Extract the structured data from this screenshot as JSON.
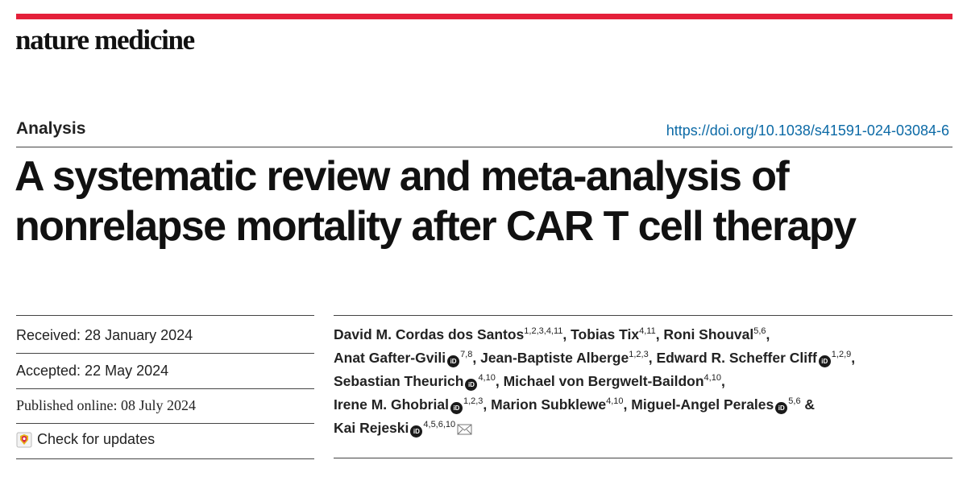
{
  "journal": {
    "name": "nature medicine"
  },
  "article": {
    "section": "Analysis",
    "doi": "https://doi.org/10.1038/s41591-024-03084-6",
    "title_line1": "A systematic review and meta-analysis of",
    "title_line2": "nonrelapse mortality after CAR T cell therapy"
  },
  "dates": {
    "received": "Received: 28 January 2024",
    "accepted": "Accepted: 22 May 2024",
    "published": "Published online: 08 July 2024",
    "check_updates": "Check for updates"
  },
  "authors": [
    {
      "name": "David M. Cordas dos Santos",
      "aff": "1,2,3,4,11",
      "orcid": false,
      "sep": ", "
    },
    {
      "name": "Tobias Tix",
      "aff": "4,11",
      "orcid": false,
      "sep": ", "
    },
    {
      "name": "Roni Shouval",
      "aff": "5,6",
      "orcid": false,
      "sep": ","
    },
    {
      "name": "Anat Gafter-Gvili",
      "aff": "7,8",
      "orcid": true,
      "sep": ", "
    },
    {
      "name": "Jean-Baptiste Alberge",
      "aff": "1,2,3",
      "orcid": false,
      "sep": ", "
    },
    {
      "name": "Edward R. Scheffer Cliff",
      "aff": "1,2,9",
      "orcid": true,
      "sep": ","
    },
    {
      "name": "Sebastian Theurich",
      "aff": "4,10",
      "orcid": true,
      "sep": ", "
    },
    {
      "name": "Michael von Bergwelt-Baildon",
      "aff": "4,10",
      "orcid": false,
      "sep": ","
    },
    {
      "name": "Irene M. Ghobrial",
      "aff": "1,2,3",
      "orcid": true,
      "sep": ", "
    },
    {
      "name": "Marion Subklewe",
      "aff": "4,10",
      "orcid": false,
      "sep": ", "
    },
    {
      "name": "Miguel-Angel Perales",
      "aff": "5,6",
      "orcid": true,
      "sep": " &"
    },
    {
      "name": "Kai Rejeski",
      "aff": "4,5,6,10",
      "orcid": true,
      "sep": "",
      "corresponding": true
    }
  ],
  "author_lines": [
    [
      0,
      1,
      2
    ],
    [
      3,
      4,
      5
    ],
    [
      6,
      7
    ],
    [
      8,
      9,
      10
    ],
    [
      11
    ]
  ],
  "icons": {
    "orcid": "orcid-icon",
    "envelope": "envelope-icon",
    "updates": "check-updates-icon"
  },
  "colors": {
    "accent_bar": "#e4203a",
    "doi_link": "#0c6aa6"
  }
}
